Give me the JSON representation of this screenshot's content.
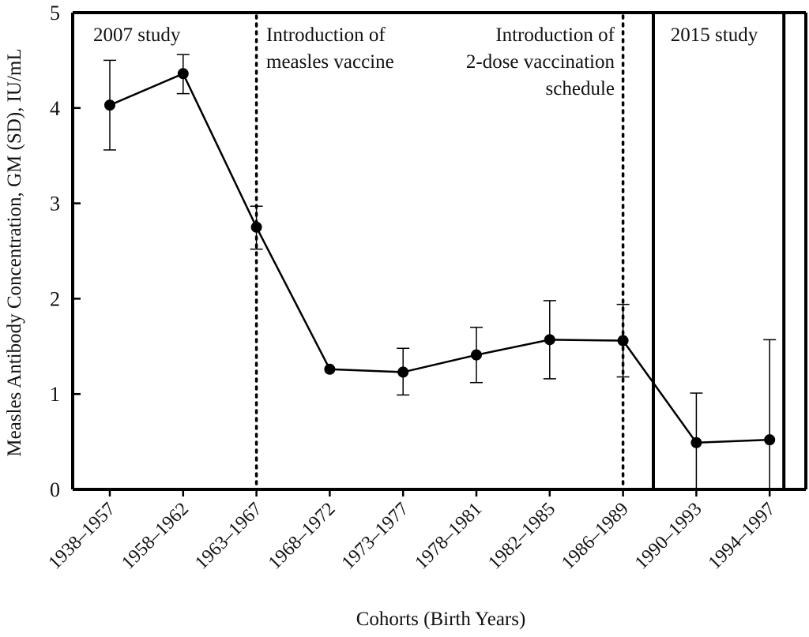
{
  "chart_data": {
    "type": "line",
    "xlabel": "Cohorts (Birth Years)",
    "ylabel": "Measles Antibody Concentration, GM (SD), IU/mL",
    "ylim": [
      0,
      5
    ],
    "yticks": [
      0,
      1,
      2,
      3,
      4,
      5
    ],
    "categories": [
      "1938–1957",
      "1958–1962",
      "1963–1967",
      "1968–1972",
      "1973–1977",
      "1978–1981",
      "1982–1985",
      "1986–1989",
      "1990–1993",
      "1994–1997"
    ],
    "series": [
      {
        "values": [
          4.03,
          4.36,
          2.75,
          1.26,
          1.23,
          1.41,
          1.57,
          1.56,
          0.49,
          0.52
        ],
        "err_low": [
          3.56,
          4.15,
          2.52,
          1.26,
          0.99,
          1.12,
          1.16,
          1.18,
          0.0,
          0.0
        ],
        "err_high": [
          4.5,
          4.56,
          2.97,
          1.26,
          1.48,
          1.7,
          1.98,
          1.94,
          1.01,
          1.57
        ]
      }
    ],
    "vertical_markers": [
      {
        "category": "1963–1967",
        "style": "dotted"
      },
      {
        "category": "1986–1989",
        "style": "dotted"
      }
    ],
    "annotations": [
      {
        "lines": [
          "2007 study"
        ],
        "anchor": "start",
        "align": "left"
      },
      {
        "lines": [
          "Introduction of",
          "measles vaccine"
        ],
        "anchor": "start",
        "align": "left"
      },
      {
        "lines": [
          "Introduction of",
          "2-dose vaccination",
          "schedule"
        ],
        "anchor": "end",
        "align": "right"
      },
      {
        "lines": [
          "2015 study"
        ],
        "anchor": "middle",
        "align": "center"
      }
    ],
    "grid": false,
    "legend": "none"
  }
}
